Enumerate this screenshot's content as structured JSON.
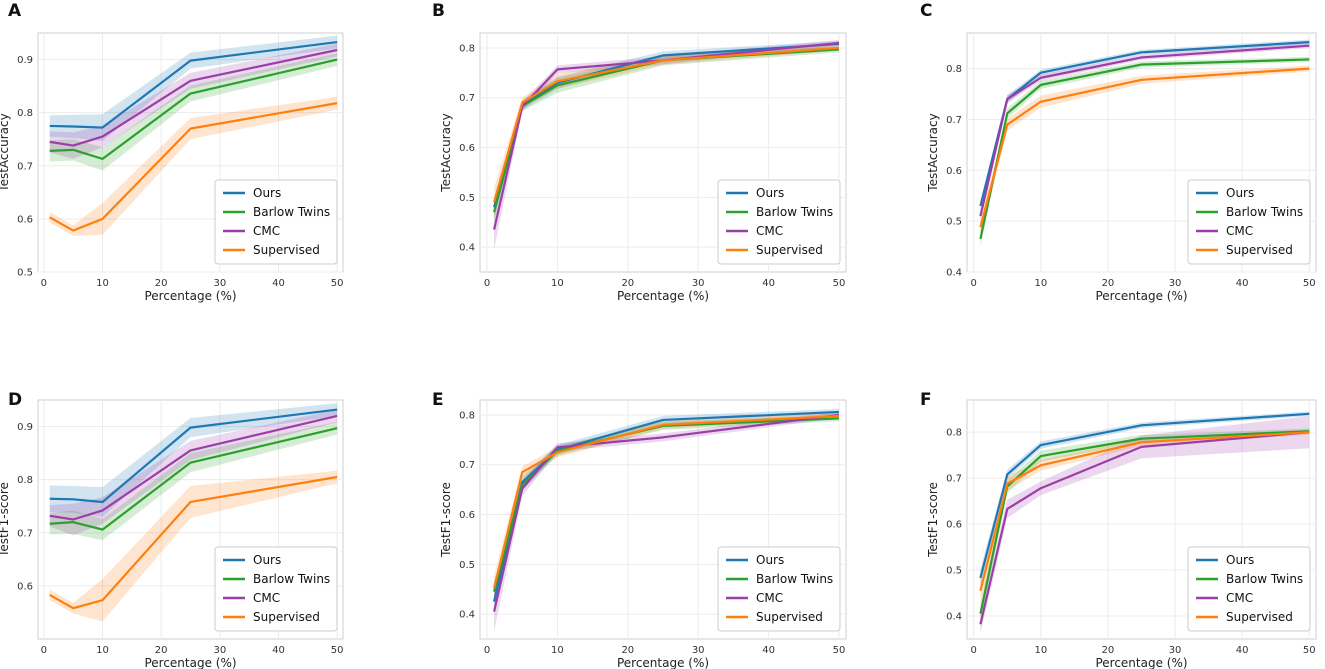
{
  "colors": {
    "Ours": "#1f77b4",
    "Barlow Twins": "#2ca02c",
    "CMC": "#9c3ea8",
    "Supervised": "#ff7f0e"
  },
  "chart_data": [
    {
      "panel": "A",
      "type": "line",
      "xlabel": "Percentage (%)",
      "ylabel": "TestAccuracy",
      "xlim": [
        -1,
        51
      ],
      "ylim": [
        0.5,
        0.95
      ],
      "xticks": [
        0,
        10,
        20,
        30,
        40,
        50
      ],
      "yticks": [
        0.5,
        0.6,
        0.7,
        0.8,
        0.9
      ],
      "ytick_labels": [
        "0.5",
        "0.6",
        "0.7",
        "0.8",
        "0.9"
      ],
      "legend": "lower right",
      "x": [
        1,
        5,
        10,
        25,
        50
      ],
      "series": [
        {
          "name": "Ours",
          "values": [
            0.775,
            0.774,
            0.772,
            0.898,
            0.933
          ],
          "band": [
            0.02,
            0.022,
            0.025,
            0.015,
            0.012
          ]
        },
        {
          "name": "Barlow Twins",
          "values": [
            0.728,
            0.73,
            0.713,
            0.836,
            0.9
          ],
          "band": [
            0.02,
            0.02,
            0.022,
            0.015,
            0.012
          ]
        },
        {
          "name": "CMC",
          "values": [
            0.745,
            0.738,
            0.755,
            0.86,
            0.918
          ],
          "band": [
            0.02,
            0.025,
            0.02,
            0.015,
            0.012
          ]
        },
        {
          "name": "Supervised",
          "values": [
            0.603,
            0.578,
            0.6,
            0.77,
            0.818
          ],
          "band": [
            0.01,
            0.01,
            0.03,
            0.02,
            0.012
          ]
        }
      ]
    },
    {
      "panel": "B",
      "type": "line",
      "xlabel": "Percentage (%)",
      "ylabel": "TestAccuracy",
      "xlim": [
        -1,
        51
      ],
      "ylim": [
        0.35,
        0.83
      ],
      "xticks": [
        0,
        10,
        20,
        30,
        40,
        50
      ],
      "yticks": [
        0.4,
        0.5,
        0.6,
        0.7,
        0.8
      ],
      "ytick_labels": [
        "0.4",
        "0.5",
        "0.6",
        "0.7",
        "0.8"
      ],
      "legend": "lower right",
      "x": [
        1,
        5,
        10,
        25,
        50
      ],
      "series": [
        {
          "name": "Ours",
          "values": [
            0.48,
            0.685,
            0.73,
            0.785,
            0.808
          ],
          "band": [
            0.02,
            0.01,
            0.012,
            0.008,
            0.006
          ]
        },
        {
          "name": "Barlow Twins",
          "values": [
            0.47,
            0.683,
            0.725,
            0.775,
            0.797
          ],
          "band": [
            0.02,
            0.01,
            0.015,
            0.01,
            0.006
          ]
        },
        {
          "name": "CMC",
          "values": [
            0.435,
            0.682,
            0.757,
            0.775,
            0.81
          ],
          "band": [
            0.04,
            0.01,
            0.008,
            0.008,
            0.006
          ]
        },
        {
          "name": "Supervised",
          "values": [
            0.49,
            0.69,
            0.733,
            0.775,
            0.8
          ],
          "band": [
            0.03,
            0.01,
            0.015,
            0.008,
            0.006
          ]
        }
      ]
    },
    {
      "panel": "C",
      "type": "line",
      "xlabel": "Percentage (%)",
      "ylabel": "TestAccuracy",
      "xlim": [
        -1,
        51
      ],
      "ylim": [
        0.4,
        0.87
      ],
      "xticks": [
        0,
        10,
        20,
        30,
        40,
        50
      ],
      "yticks": [
        0.4,
        0.5,
        0.6,
        0.7,
        0.8
      ],
      "ytick_labels": [
        "0.4",
        "0.5",
        "0.6",
        "0.7",
        "0.8"
      ],
      "legend": "lower right",
      "x": [
        1,
        5,
        10,
        25,
        50
      ],
      "series": [
        {
          "name": "Ours",
          "values": [
            0.53,
            0.74,
            0.792,
            0.832,
            0.852
          ],
          "band": [
            0.01,
            0.008,
            0.006,
            0.005,
            0.005
          ]
        },
        {
          "name": "Barlow Twins",
          "values": [
            0.465,
            0.712,
            0.768,
            0.808,
            0.818
          ],
          "band": [
            0.015,
            0.01,
            0.008,
            0.006,
            0.005
          ]
        },
        {
          "name": "CMC",
          "values": [
            0.51,
            0.74,
            0.782,
            0.822,
            0.845
          ],
          "band": [
            0.01,
            0.008,
            0.006,
            0.005,
            0.005
          ]
        },
        {
          "name": "Supervised",
          "values": [
            0.488,
            0.69,
            0.735,
            0.778,
            0.8
          ],
          "band": [
            0.02,
            0.012,
            0.012,
            0.008,
            0.006
          ]
        }
      ]
    },
    {
      "panel": "D",
      "type": "line",
      "xlabel": "Percentage (%)",
      "ylabel": "TestF1-score",
      "xlim": [
        -1,
        51
      ],
      "ylim": [
        0.5,
        0.95
      ],
      "xticks": [
        0,
        10,
        20,
        30,
        40,
        50
      ],
      "yticks": [
        0.6,
        0.7,
        0.8,
        0.9
      ],
      "ytick_labels": [
        "0.6",
        "0.7",
        "0.8",
        "0.9"
      ],
      "legend": "lower right",
      "x": [
        1,
        5,
        10,
        25,
        50
      ],
      "series": [
        {
          "name": "Ours",
          "values": [
            0.764,
            0.763,
            0.758,
            0.898,
            0.932
          ],
          "band": [
            0.025,
            0.025,
            0.028,
            0.018,
            0.012
          ]
        },
        {
          "name": "Barlow Twins",
          "values": [
            0.717,
            0.72,
            0.706,
            0.832,
            0.897
          ],
          "band": [
            0.02,
            0.022,
            0.02,
            0.018,
            0.012
          ]
        },
        {
          "name": "CMC",
          "values": [
            0.732,
            0.725,
            0.742,
            0.855,
            0.92
          ],
          "band": [
            0.02,
            0.03,
            0.025,
            0.018,
            0.012
          ]
        },
        {
          "name": "Supervised",
          "values": [
            0.583,
            0.558,
            0.573,
            0.758,
            0.805
          ],
          "band": [
            0.01,
            0.01,
            0.04,
            0.03,
            0.012
          ]
        }
      ]
    },
    {
      "panel": "E",
      "type": "line",
      "xlabel": "Percentage (%)",
      "ylabel": "TestF1-score",
      "xlim": [
        -1,
        51
      ],
      "ylim": [
        0.35,
        0.83
      ],
      "xticks": [
        0,
        10,
        20,
        30,
        40,
        50
      ],
      "yticks": [
        0.4,
        0.5,
        0.6,
        0.7,
        0.8
      ],
      "ytick_labels": [
        "0.4",
        "0.5",
        "0.6",
        "0.7",
        "0.8"
      ],
      "legend": "lower right",
      "x": [
        1,
        5,
        10,
        25,
        50
      ],
      "series": [
        {
          "name": "Ours",
          "values": [
            0.425,
            0.665,
            0.73,
            0.79,
            0.806
          ],
          "band": [
            0.02,
            0.012,
            0.01,
            0.008,
            0.006
          ]
        },
        {
          "name": "Barlow Twins",
          "values": [
            0.445,
            0.66,
            0.728,
            0.778,
            0.793
          ],
          "band": [
            0.02,
            0.012,
            0.01,
            0.008,
            0.006
          ]
        },
        {
          "name": "CMC",
          "values": [
            0.405,
            0.652,
            0.735,
            0.755,
            0.8
          ],
          "band": [
            0.04,
            0.015,
            0.008,
            0.008,
            0.006
          ]
        },
        {
          "name": "Supervised",
          "values": [
            0.452,
            0.685,
            0.725,
            0.78,
            0.798
          ],
          "band": [
            0.025,
            0.012,
            0.01,
            0.008,
            0.006
          ]
        }
      ]
    },
    {
      "panel": "F",
      "type": "line",
      "xlabel": "Percentage (%)",
      "ylabel": "TestF1-score",
      "xlim": [
        -1,
        51
      ],
      "ylim": [
        0.35,
        0.87
      ],
      "xticks": [
        0,
        10,
        20,
        30,
        40,
        50
      ],
      "yticks": [
        0.4,
        0.5,
        0.6,
        0.7,
        0.8
      ],
      "ytick_labels": [
        "0.4",
        "0.5",
        "0.6",
        "0.7",
        "0.8"
      ],
      "legend": "lower right",
      "x": [
        1,
        5,
        10,
        25,
        50
      ],
      "series": [
        {
          "name": "Ours",
          "values": [
            0.483,
            0.708,
            0.772,
            0.815,
            0.84
          ],
          "band": [
            0.02,
            0.01,
            0.008,
            0.006,
            0.005
          ]
        },
        {
          "name": "Barlow Twins",
          "values": [
            0.405,
            0.682,
            0.748,
            0.786,
            0.802
          ],
          "band": [
            0.02,
            0.015,
            0.012,
            0.008,
            0.006
          ]
        },
        {
          "name": "CMC",
          "values": [
            0.382,
            0.633,
            0.678,
            0.768,
            0.8
          ],
          "band": [
            0.02,
            0.02,
            0.015,
            0.025,
            0.035
          ]
        },
        {
          "name": "Supervised",
          "values": [
            0.455,
            0.688,
            0.728,
            0.778,
            0.8
          ],
          "band": [
            0.03,
            0.015,
            0.012,
            0.008,
            0.006
          ]
        }
      ]
    }
  ]
}
